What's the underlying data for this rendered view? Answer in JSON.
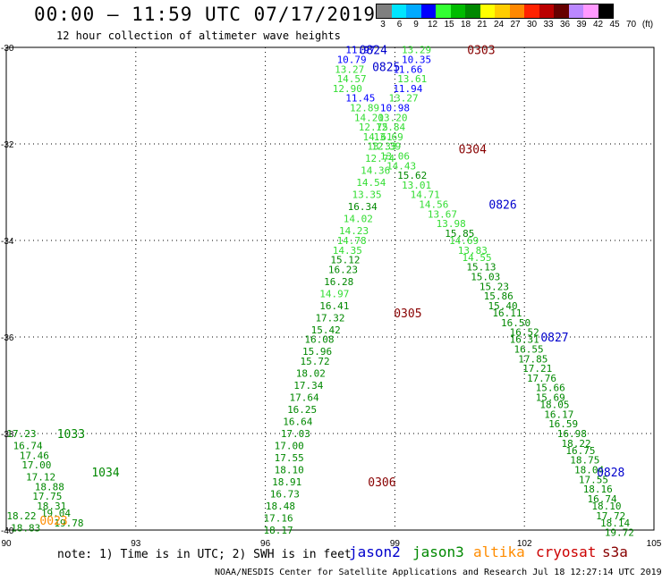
{
  "title": "00:00 – 11:59 UTC 07/17/2019",
  "subtitle": "12 hour collection of altimeter wave heights",
  "color_scale": {
    "unit": "(ft)",
    "levels": [
      "3",
      "6",
      "9",
      "12",
      "15",
      "18",
      "21",
      "24",
      "27",
      "30",
      "33",
      "36",
      "39",
      "42",
      "45",
      "70"
    ],
    "colors": [
      "#7f7f7f",
      "#00e5ff",
      "#00aaff",
      "#0000ff",
      "#33ff33",
      "#00bb00",
      "#008800",
      "#ffff00",
      "#ffcc00",
      "#ff8800",
      "#ff2200",
      "#bb0000",
      "#660000",
      "#bb88ff",
      "#ff99ff",
      "#000000"
    ]
  },
  "note": "note: 1) Time is in UTC; 2) SWH is in feet",
  "satellites": [
    {
      "name": "jason2",
      "color": "#0000cc"
    },
    {
      "name": "jason3",
      "color": "#008800"
    },
    {
      "name": "altika",
      "color": "#ff8c00"
    },
    {
      "name": "cryosat",
      "color": "#cc0000"
    },
    {
      "name": "s3a",
      "color": "#880000"
    }
  ],
  "credit": "NOAA/NESDIS Center for Satellite Applications and Research    Jul 18 12:27:14 UTC 2019",
  "chart_data": {
    "type": "scatter",
    "title": "00:00 – 11:59 UTC 07/17/2019",
    "xlim": [
      90,
      105
    ],
    "ylim": [
      -40,
      -30
    ],
    "x_ticks": [
      "90",
      "93",
      "96",
      "99",
      "102",
      "105"
    ],
    "y_ticks": [
      "-30",
      "-32",
      "-34",
      "-36",
      "-38",
      "-40"
    ],
    "grid": true,
    "time_labels": [
      {
        "text": "0824",
        "lon": 98.5,
        "lat": -30.05,
        "color": "#0000cc"
      },
      {
        "text": "0303",
        "lon": 101.0,
        "lat": -30.05,
        "color": "#880000"
      },
      {
        "text": "0825",
        "lon": 98.8,
        "lat": -30.4,
        "color": "#0000cc"
      },
      {
        "text": "0304",
        "lon": 100.8,
        "lat": -32.1,
        "color": "#880000"
      },
      {
        "text": "0826",
        "lon": 101.5,
        "lat": -33.25,
        "color": "#0000cc"
      },
      {
        "text": "0305",
        "lon": 99.3,
        "lat": -35.5,
        "color": "#880000"
      },
      {
        "text": "0827",
        "lon": 102.7,
        "lat": -36.0,
        "color": "#0000cc"
      },
      {
        "text": "1033",
        "lon": 91.5,
        "lat": -38.0,
        "color": "#008800"
      },
      {
        "text": "1034",
        "lon": 92.3,
        "lat": -38.8,
        "color": "#008800"
      },
      {
        "text": "0306",
        "lon": 98.7,
        "lat": -39.0,
        "color": "#880000"
      },
      {
        "text": "0828",
        "lon": 104.0,
        "lat": -38.8,
        "color": "#0000cc"
      },
      {
        "text": "0023",
        "lon": 91.1,
        "lat": -39.8,
        "color": "#ff8c00"
      }
    ],
    "series": [
      {
        "points": [
          {
            "lon": 98.2,
            "lat": -30.05,
            "swh": "11.97",
            "color": "#0000ff"
          },
          {
            "lon": 98.0,
            "lat": -30.25,
            "swh": "10.79",
            "color": "#0000ff"
          },
          {
            "lon": 97.95,
            "lat": -30.45,
            "swh": "13.27",
            "color": "#33dd33"
          },
          {
            "lon": 98.0,
            "lat": -30.65,
            "swh": "14.57",
            "color": "#33dd33"
          },
          {
            "lon": 97.9,
            "lat": -30.85,
            "swh": "12.90",
            "color": "#33dd33"
          },
          {
            "lon": 98.2,
            "lat": -31.05,
            "swh": "11.45",
            "color": "#0000ff"
          },
          {
            "lon": 98.3,
            "lat": -31.25,
            "swh": "12.89",
            "color": "#33dd33"
          },
          {
            "lon": 98.4,
            "lat": -31.45,
            "swh": "14.20",
            "color": "#33dd33"
          },
          {
            "lon": 98.5,
            "lat": -31.65,
            "swh": "12.75",
            "color": "#33dd33"
          },
          {
            "lon": 98.6,
            "lat": -31.85,
            "swh": "14.61",
            "color": "#33dd33"
          },
          {
            "lon": 98.7,
            "lat": -32.05,
            "swh": "13.33",
            "color": "#33dd33"
          },
          {
            "lon": 98.65,
            "lat": -32.3,
            "swh": "12.74",
            "color": "#33dd33"
          },
          {
            "lon": 98.55,
            "lat": -32.55,
            "swh": "14.36",
            "color": "#33dd33"
          },
          {
            "lon": 98.45,
            "lat": -32.8,
            "swh": "14.54",
            "color": "#33dd33"
          },
          {
            "lon": 98.35,
            "lat": -33.05,
            "swh": "13.35",
            "color": "#33dd33"
          },
          {
            "lon": 98.25,
            "lat": -33.3,
            "swh": "16.34",
            "color": "#008800"
          },
          {
            "lon": 98.15,
            "lat": -33.55,
            "swh": "14.02",
            "color": "#33dd33"
          },
          {
            "lon": 98.05,
            "lat": -33.8,
            "swh": "14.23",
            "color": "#33dd33"
          },
          {
            "lon": 98.0,
            "lat": -34.0,
            "swh": "14.78",
            "color": "#33dd33"
          },
          {
            "lon": 97.9,
            "lat": -34.2,
            "swh": "14.35",
            "color": "#33dd33"
          },
          {
            "lon": 97.85,
            "lat": -34.4,
            "swh": "15.12",
            "color": "#008800"
          },
          {
            "lon": 97.8,
            "lat": -34.6,
            "swh": "16.23",
            "color": "#008800"
          },
          {
            "lon": 97.7,
            "lat": -34.85,
            "swh": "16.28",
            "color": "#008800"
          },
          {
            "lon": 97.6,
            "lat": -35.1,
            "swh": "14.97",
            "color": "#33dd33"
          },
          {
            "lon": 97.6,
            "lat": -35.35,
            "swh": "16.41",
            "color": "#008800"
          },
          {
            "lon": 97.5,
            "lat": -35.6,
            "swh": "17.32",
            "color": "#008800"
          },
          {
            "lon": 97.4,
            "lat": -35.85,
            "swh": "15.42",
            "color": "#008800"
          },
          {
            "lon": 97.25,
            "lat": -36.05,
            "swh": "16.08",
            "color": "#008800"
          },
          {
            "lon": 97.2,
            "lat": -36.3,
            "swh": "15.96",
            "color": "#008800"
          },
          {
            "lon": 97.15,
            "lat": -36.5,
            "swh": "15.72",
            "color": "#008800"
          },
          {
            "lon": 97.05,
            "lat": -36.75,
            "swh": "18.02",
            "color": "#008800"
          },
          {
            "lon": 97.0,
            "lat": -37.0,
            "swh": "17.34",
            "color": "#008800"
          },
          {
            "lon": 96.9,
            "lat": -37.25,
            "swh": "17.64",
            "color": "#008800"
          },
          {
            "lon": 96.85,
            "lat": -37.5,
            "swh": "16.25",
            "color": "#008800"
          },
          {
            "lon": 96.75,
            "lat": -37.75,
            "swh": "16.64",
            "color": "#008800"
          },
          {
            "lon": 96.7,
            "lat": -38.0,
            "swh": "17.03",
            "color": "#008800"
          },
          {
            "lon": 96.55,
            "lat": -38.25,
            "swh": "17.00",
            "color": "#008800"
          },
          {
            "lon": 96.55,
            "lat": -38.5,
            "swh": "17.55",
            "color": "#008800"
          },
          {
            "lon": 96.55,
            "lat": -38.75,
            "swh": "18.10",
            "color": "#008800"
          },
          {
            "lon": 96.5,
            "lat": -39.0,
            "swh": "18.91",
            "color": "#008800"
          },
          {
            "lon": 96.45,
            "lat": -39.25,
            "swh": "16.73",
            "color": "#008800"
          },
          {
            "lon": 96.35,
            "lat": -39.5,
            "swh": "18.48",
            "color": "#008800"
          },
          {
            "lon": 96.3,
            "lat": -39.75,
            "swh": "17.16",
            "color": "#008800"
          },
          {
            "lon": 96.3,
            "lat": -40.0,
            "swh": "18.17",
            "color": "#008800"
          }
        ]
      },
      {
        "points": [
          {
            "lon": 99.5,
            "lat": -30.05,
            "swh": "13.29",
            "color": "#33dd33"
          },
          {
            "lon": 99.5,
            "lat": -30.25,
            "swh": "10.35",
            "color": "#0000ff"
          },
          {
            "lon": 99.3,
            "lat": -30.45,
            "swh": "11.66",
            "color": "#0000ff"
          },
          {
            "lon": 99.4,
            "lat": -30.65,
            "swh": "13.61",
            "color": "#33dd33"
          },
          {
            "lon": 99.3,
            "lat": -30.85,
            "swh": "11.94",
            "color": "#0000ff"
          },
          {
            "lon": 99.2,
            "lat": -31.05,
            "swh": "13.27",
            "color": "#33dd33"
          },
          {
            "lon": 99.0,
            "lat": -31.25,
            "swh": "10.98",
            "color": "#0000ff"
          },
          {
            "lon": 98.95,
            "lat": -31.45,
            "swh": "13.20",
            "color": "#33dd33"
          },
          {
            "lon": 98.9,
            "lat": -31.65,
            "swh": "12.84",
            "color": "#33dd33"
          },
          {
            "lon": 98.85,
            "lat": -31.85,
            "swh": "13.69",
            "color": "#33dd33"
          },
          {
            "lon": 98.8,
            "lat": -32.05,
            "swh": "12.39",
            "color": "#33dd33"
          },
          {
            "lon": 99.0,
            "lat": -32.25,
            "swh": "13.06",
            "color": "#33dd33"
          },
          {
            "lon": 99.15,
            "lat": -32.45,
            "swh": "14.43",
            "color": "#33dd33"
          },
          {
            "lon": 99.4,
            "lat": -32.65,
            "swh": "15.62",
            "color": "#008800"
          },
          {
            "lon": 99.5,
            "lat": -32.85,
            "swh": "13.01",
            "color": "#33dd33"
          },
          {
            "lon": 99.7,
            "lat": -33.05,
            "swh": "14.71",
            "color": "#33dd33"
          },
          {
            "lon": 99.9,
            "lat": -33.25,
            "swh": "14.56",
            "color": "#33dd33"
          },
          {
            "lon": 100.1,
            "lat": -33.45,
            "swh": "13.67",
            "color": "#33dd33"
          },
          {
            "lon": 100.3,
            "lat": -33.65,
            "swh": "13.98",
            "color": "#33dd33"
          },
          {
            "lon": 100.5,
            "lat": -33.85,
            "swh": "15.85",
            "color": "#008800"
          },
          {
            "lon": 100.6,
            "lat": -34.0,
            "swh": "14.69",
            "color": "#33dd33"
          },
          {
            "lon": 100.8,
            "lat": -34.2,
            "swh": "13.83",
            "color": "#33dd33"
          },
          {
            "lon": 100.9,
            "lat": -34.35,
            "swh": "14.55",
            "color": "#33dd33"
          },
          {
            "lon": 101.0,
            "lat": -34.55,
            "swh": "15.13",
            "color": "#008800"
          },
          {
            "lon": 101.1,
            "lat": -34.75,
            "swh": "15.03",
            "color": "#008800"
          },
          {
            "lon": 101.3,
            "lat": -34.95,
            "swh": "15.23",
            "color": "#008800"
          },
          {
            "lon": 101.4,
            "lat": -35.15,
            "swh": "15.86",
            "color": "#008800"
          },
          {
            "lon": 101.5,
            "lat": -35.35,
            "swh": "15.40",
            "color": "#008800"
          },
          {
            "lon": 101.6,
            "lat": -35.5,
            "swh": "16.11",
            "color": "#008800"
          },
          {
            "lon": 101.8,
            "lat": -35.7,
            "swh": "16.50",
            "color": "#008800"
          },
          {
            "lon": 102.0,
            "lat": -35.9,
            "swh": "16.52",
            "color": "#008800"
          },
          {
            "lon": 102.0,
            "lat": -36.05,
            "swh": "16.31",
            "color": "#008800"
          },
          {
            "lon": 102.1,
            "lat": -36.25,
            "swh": "16.55",
            "color": "#008800"
          },
          {
            "lon": 102.2,
            "lat": -36.45,
            "swh": "17.85",
            "color": "#008800"
          },
          {
            "lon": 102.3,
            "lat": -36.65,
            "swh": "17.21",
            "color": "#008800"
          },
          {
            "lon": 102.4,
            "lat": -36.85,
            "swh": "17.76",
            "color": "#008800"
          },
          {
            "lon": 102.6,
            "lat": -37.05,
            "swh": "15.66",
            "color": "#008800"
          },
          {
            "lon": 102.6,
            "lat": -37.25,
            "swh": "15.69",
            "color": "#008800"
          },
          {
            "lon": 102.7,
            "lat": -37.4,
            "swh": "18.05",
            "color": "#008800"
          },
          {
            "lon": 102.8,
            "lat": -37.6,
            "swh": "16.17",
            "color": "#008800"
          },
          {
            "lon": 102.9,
            "lat": -37.8,
            "swh": "16.59",
            "color": "#008800"
          },
          {
            "lon": 103.1,
            "lat": -38.0,
            "swh": "16.98",
            "color": "#008800"
          },
          {
            "lon": 103.2,
            "lat": -38.2,
            "swh": "18.22",
            "color": "#008800"
          },
          {
            "lon": 103.3,
            "lat": -38.35,
            "swh": "16.75",
            "color": "#008800"
          },
          {
            "lon": 103.4,
            "lat": -38.55,
            "swh": "18.75",
            "color": "#008800"
          },
          {
            "lon": 103.5,
            "lat": -38.75,
            "swh": "18.04",
            "color": "#008800"
          },
          {
            "lon": 103.6,
            "lat": -38.95,
            "swh": "17.55",
            "color": "#008800"
          },
          {
            "lon": 103.7,
            "lat": -39.15,
            "swh": "18.16",
            "color": "#008800"
          },
          {
            "lon": 103.8,
            "lat": -39.35,
            "swh": "16.74",
            "color": "#008800"
          },
          {
            "lon": 103.9,
            "lat": -39.5,
            "swh": "18.10",
            "color": "#008800"
          },
          {
            "lon": 104.0,
            "lat": -39.7,
            "swh": "17.72",
            "color": "#008800"
          },
          {
            "lon": 104.1,
            "lat": -39.85,
            "swh": "18.14",
            "color": "#008800"
          },
          {
            "lon": 104.2,
            "lat": -40.05,
            "swh": "19.72",
            "color": "#008800"
          }
        ]
      },
      {
        "points": [
          {
            "lon": 90.35,
            "lat": -38.0,
            "swh": "17.23",
            "color": "#008800"
          },
          {
            "lon": 90.5,
            "lat": -38.25,
            "swh": "16.74",
            "color": "#008800"
          },
          {
            "lon": 90.65,
            "lat": -38.45,
            "swh": "17.46",
            "color": "#008800"
          },
          {
            "lon": 90.7,
            "lat": -38.65,
            "swh": "17.00",
            "color": "#008800"
          },
          {
            "lon": 90.8,
            "lat": -38.9,
            "swh": "17.12",
            "color": "#008800"
          },
          {
            "lon": 91.0,
            "lat": -39.1,
            "swh": "18.88",
            "color": "#008800"
          },
          {
            "lon": 90.95,
            "lat": -39.3,
            "swh": "17.75",
            "color": "#008800"
          },
          {
            "lon": 91.05,
            "lat": -39.5,
            "swh": "18.31",
            "color": "#008800"
          },
          {
            "lon": 91.15,
            "lat": -39.65,
            "swh": "19.04",
            "color": "#008800"
          },
          {
            "lon": 91.45,
            "lat": -39.85,
            "swh": "19.78",
            "color": "#008800"
          },
          {
            "lon": 90.35,
            "lat": -39.7,
            "swh": "18.22",
            "color": "#008800"
          },
          {
            "lon": 90.45,
            "lat": -39.95,
            "swh": "18.83",
            "color": "#008800"
          }
        ]
      }
    ]
  }
}
